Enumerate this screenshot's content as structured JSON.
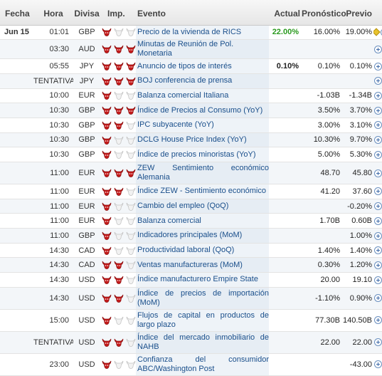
{
  "headers": {
    "fecha": "Fecha",
    "hora": "Hora",
    "divisa": "Divisa",
    "imp": "Imp.",
    "evento": "Evento",
    "actual": "Actual",
    "pronostico": "Pronóstico",
    "previo": "Previo"
  },
  "colors": {
    "bull_active": "#c41a1a",
    "bull_inactive": "#d4d4d4",
    "actual_positive": "#2a9a1e",
    "link": "#1a4f8b"
  },
  "rows": [
    {
      "fecha": "Jun 15",
      "hora": "01:01",
      "divisa": "GBP",
      "imp": 1,
      "evento": "Precio de la vivienda de RICS",
      "actual": "22.00%",
      "actual_style": "green",
      "pronostico": "16.00%",
      "previo": "19.00%",
      "revised": true,
      "tall": false
    },
    {
      "fecha": "",
      "hora": "03:30",
      "divisa": "AUD",
      "imp": 3,
      "evento": "Minutas de Reunión de Pol. Monetaria",
      "actual": "",
      "pronostico": "",
      "previo": "",
      "tall": false
    },
    {
      "fecha": "",
      "hora": "05:55",
      "divisa": "JPY",
      "imp": 3,
      "evento": "Anuncio de tipos de interés",
      "actual": "0.10%",
      "actual_style": "bold",
      "pronostico": "0.10%",
      "previo": "0.10%",
      "tall": false
    },
    {
      "fecha": "",
      "hora": "TENTATIVA",
      "divisa": "JPY",
      "imp": 3,
      "evento": "BOJ conferencia de prensa",
      "actual": "",
      "pronostico": "",
      "previo": "",
      "tall": false
    },
    {
      "fecha": "",
      "hora": "10:00",
      "divisa": "EUR",
      "imp": 1,
      "evento": "Balanza comercial Italiana",
      "actual": "",
      "pronostico": "-1.03B",
      "previo": "-1.34B",
      "tall": false
    },
    {
      "fecha": "",
      "hora": "10:30",
      "divisa": "GBP",
      "imp": 3,
      "evento": "Índice de Precios al Consumo  (YoY)",
      "actual": "",
      "pronostico": "3.50%",
      "previo": "3.70%",
      "tall": false
    },
    {
      "fecha": "",
      "hora": "10:30",
      "divisa": "GBP",
      "imp": 2,
      "evento": "IPC subyacente  (YoY)",
      "actual": "",
      "pronostico": "3.00%",
      "previo": "3.10%",
      "tall": false
    },
    {
      "fecha": "",
      "hora": "10:30",
      "divisa": "GBP",
      "imp": 1,
      "evento": "DCLG House Price Index (YoY)",
      "actual": "",
      "pronostico": "10.30%",
      "previo": "9.70%",
      "tall": false
    },
    {
      "fecha": "",
      "hora": "10:30",
      "divisa": "GBP",
      "imp": 1,
      "evento": "Índice de precios minoristas  (YoY)",
      "actual": "",
      "pronostico": "5.00%",
      "previo": "5.30%",
      "tall": false
    },
    {
      "fecha": "",
      "hora": "11:00",
      "divisa": "EUR",
      "imp": 3,
      "evento": "ZEW Sentimiento económico Alemania",
      "actual": "",
      "pronostico": "48.70",
      "previo": "45.80",
      "tall": true
    },
    {
      "fecha": "",
      "hora": "11:00",
      "divisa": "EUR",
      "imp": 2,
      "evento": "Índice ZEW - Sentimiento económico",
      "actual": "",
      "pronostico": "41.20",
      "previo": "37.60",
      "tall": false
    },
    {
      "fecha": "",
      "hora": "11:00",
      "divisa": "EUR",
      "imp": 1,
      "evento": "Cambio del empleo  (QoQ)",
      "actual": "",
      "pronostico": "",
      "previo": "-0.20%",
      "tall": false
    },
    {
      "fecha": "",
      "hora": "11:00",
      "divisa": "EUR",
      "imp": 1,
      "evento": "Balanza comercial",
      "actual": "",
      "pronostico": "1.70B",
      "previo": "0.60B",
      "tall": false
    },
    {
      "fecha": "",
      "hora": "11:00",
      "divisa": "GBP",
      "imp": 1,
      "evento": "Indicadores principales  (MoM)",
      "actual": "",
      "pronostico": "",
      "previo": "1.00%",
      "tall": false
    },
    {
      "fecha": "",
      "hora": "14:30",
      "divisa": "CAD",
      "imp": 1,
      "evento": "Productividad laboral (QoQ)",
      "actual": "",
      "pronostico": "1.40%",
      "previo": "1.40%",
      "tall": false
    },
    {
      "fecha": "",
      "hora": "14:30",
      "divisa": "CAD",
      "imp": 2,
      "evento": "Ventas manufactureras  (MoM)",
      "actual": "",
      "pronostico": "0.30%",
      "previo": "1.20%",
      "tall": false
    },
    {
      "fecha": "",
      "hora": "14:30",
      "divisa": "USD",
      "imp": 2,
      "evento": "Índice manufacturero Empire State",
      "actual": "",
      "pronostico": "20.00",
      "previo": "19.10",
      "tall": false
    },
    {
      "fecha": "",
      "hora": "14:30",
      "divisa": "USD",
      "imp": 2,
      "evento": "Índice de precios de importación (MoM)",
      "actual": "",
      "pronostico": "-1.10%",
      "previo": "0.90%",
      "tall": true
    },
    {
      "fecha": "",
      "hora": "15:00",
      "divisa": "USD",
      "imp": 1,
      "evento": "Flujos de capital en productos de largo plazo",
      "actual": "",
      "pronostico": "77.30B",
      "previo": "140.50B",
      "tall": true
    },
    {
      "fecha": "",
      "hora": "TENTATIVA",
      "divisa": "USD",
      "imp": 2,
      "evento": "Índice del mercado inmobiliario de NAHB",
      "actual": "",
      "pronostico": "22.00",
      "previo": "22.00",
      "tall": true
    },
    {
      "fecha": "",
      "hora": "23:00",
      "divisa": "USD",
      "imp": 1,
      "evento": "Confianza del consumidor ABC/Washington Post",
      "actual": "",
      "pronostico": "",
      "previo": "-43.00",
      "tall": true
    }
  ]
}
